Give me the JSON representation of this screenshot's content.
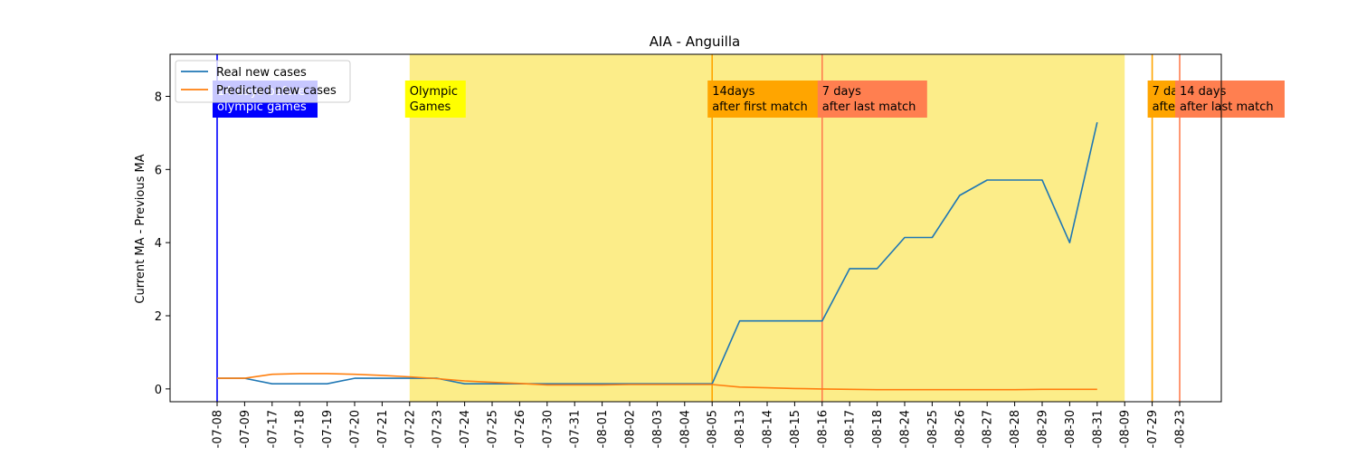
{
  "chart_data": {
    "type": "line",
    "title": "AIA - Anguilla",
    "ylabel": "Current MA - Previous MA",
    "xlabel": "",
    "ylim": [
      -0.35,
      9.15
    ],
    "yticks": [
      0,
      2,
      4,
      6,
      8
    ],
    "categories": [
      "-07-08",
      "-07-09",
      "-07-17",
      "-07-18",
      "-07-19",
      "-07-20",
      "-07-21",
      "-07-22",
      "-07-23",
      "-07-24",
      "-07-25",
      "-07-26",
      "-07-30",
      "-07-31",
      "-08-01",
      "-08-02",
      "-08-03",
      "-08-04",
      "-08-05",
      "-08-13",
      "-08-14",
      "-08-15",
      "-08-16",
      "-08-17",
      "-08-18",
      "-08-24",
      "-08-25",
      "-08-26",
      "-08-27",
      "-08-28",
      "-08-29",
      "-08-30",
      "-08-31",
      "-08-09",
      "-07-29",
      "-08-23"
    ],
    "series": [
      {
        "name": "Real new cases",
        "color": "#1f77b4",
        "values": [
          0.29,
          0.29,
          0.14,
          0.14,
          0.14,
          0.29,
          0.29,
          0.29,
          0.29,
          0.14,
          0.14,
          0.14,
          0.14,
          0.14,
          0.14,
          0.14,
          0.14,
          0.14,
          0.14,
          1.86,
          1.86,
          1.86,
          1.86,
          3.29,
          3.29,
          4.14,
          4.14,
          5.29,
          5.71,
          5.71,
          5.71,
          4.0,
          7.29,
          null,
          null,
          null
        ]
      },
      {
        "name": "Predicted new cases",
        "color": "#ff7f0e",
        "values": [
          0.29,
          0.29,
          0.4,
          0.42,
          0.42,
          0.4,
          0.37,
          0.33,
          0.28,
          0.22,
          0.18,
          0.15,
          0.11,
          0.11,
          0.11,
          0.12,
          0.12,
          0.12,
          0.12,
          0.05,
          0.03,
          0.01,
          0.0,
          -0.01,
          -0.02,
          -0.02,
          -0.02,
          -0.02,
          -0.02,
          -0.02,
          -0.01,
          -0.01,
          -0.01,
          null,
          null,
          null
        ]
      }
    ],
    "shaded_region": {
      "from": "-07-22",
      "to": "-08-09",
      "color": "#fcec83"
    },
    "annotations": [
      {
        "at": "-07-08",
        "line_color": "#0000ff",
        "box_color": "#0000ff",
        "text_color": "#ffffff",
        "lines": [
          "14 days before",
          "olympic games"
        ]
      },
      {
        "at": "-07-22",
        "line_color": null,
        "box_color": "#ffff00",
        "text_color": "#000000",
        "lines": [
          "Olympic",
          "Games"
        ]
      },
      {
        "at": "-08-05",
        "line_color": "#ffa500",
        "box_color": "#ffa500",
        "text_color": "#000000",
        "lines": [
          "14days",
          "after first match"
        ]
      },
      {
        "at": "-08-16",
        "line_color": "#ff7f50",
        "box_color": "#ff7f50",
        "text_color": "#000000",
        "lines": [
          "7 days",
          "after last match"
        ]
      },
      {
        "at": "-07-29",
        "line_color": "#ffa500",
        "box_color": "#ffa500",
        "text_color": "#000000",
        "lines": [
          "7 days",
          "after first match"
        ]
      },
      {
        "at": "-08-23",
        "line_color": "#ff7f50",
        "box_color": "#ff7f50",
        "text_color": "#000000",
        "lines": [
          "14 days",
          "after last match"
        ]
      }
    ],
    "legend": {
      "placement": "top-left"
    },
    "grid": false
  }
}
